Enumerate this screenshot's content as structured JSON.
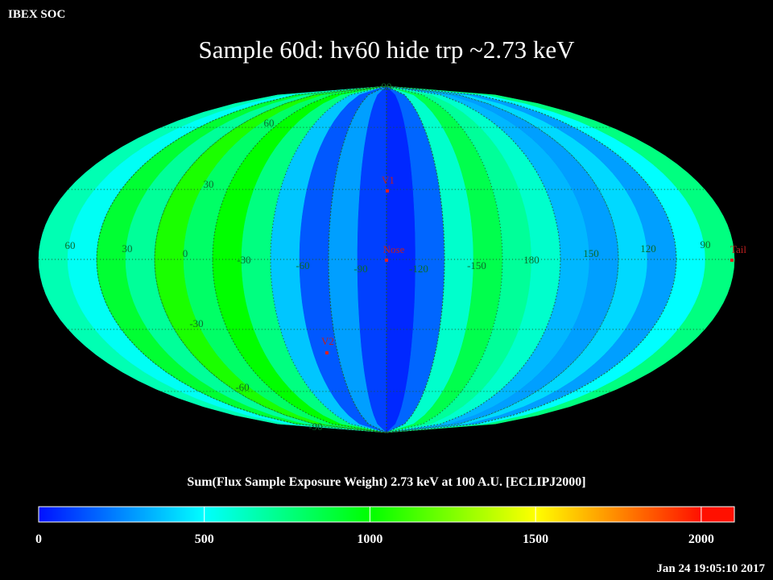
{
  "header": {
    "source": "IBEX SOC",
    "title": "Sample 60d: hv60 hide trp ~2.73 keV",
    "timestamp": "Jan 24 19:05:10 2017"
  },
  "map": {
    "bands": [
      650,
      520,
      900,
      700,
      1050,
      800,
      1000,
      750,
      380,
      150,
      300,
      100,
      50,
      180,
      600,
      850,
      700,
      600,
      350,
      300,
      420,
      300,
      500,
      750
    ],
    "lat_labels": [
      "90",
      "60",
      "30",
      "-30",
      "-60",
      "-90"
    ],
    "lon_labels": [
      "60",
      "30",
      "0",
      "-30",
      "-60",
      "-90",
      "-120",
      "-150",
      "180",
      "150",
      "120",
      "90"
    ],
    "markers": [
      "V1",
      "Nose",
      "V2",
      "Tail"
    ]
  },
  "colorbar": {
    "label": "Sum(Flux Sample Exposure Weight)  2.73 keV at 100 A.U. [ECLIPJ2000]",
    "lim": [
      0,
      2100
    ],
    "ticks": [
      0,
      500,
      1000,
      1500,
      2000
    ],
    "colors": [
      "#0010ff",
      "#00ffff",
      "#00ff00",
      "#ffff00",
      "#ff1000"
    ]
  }
}
